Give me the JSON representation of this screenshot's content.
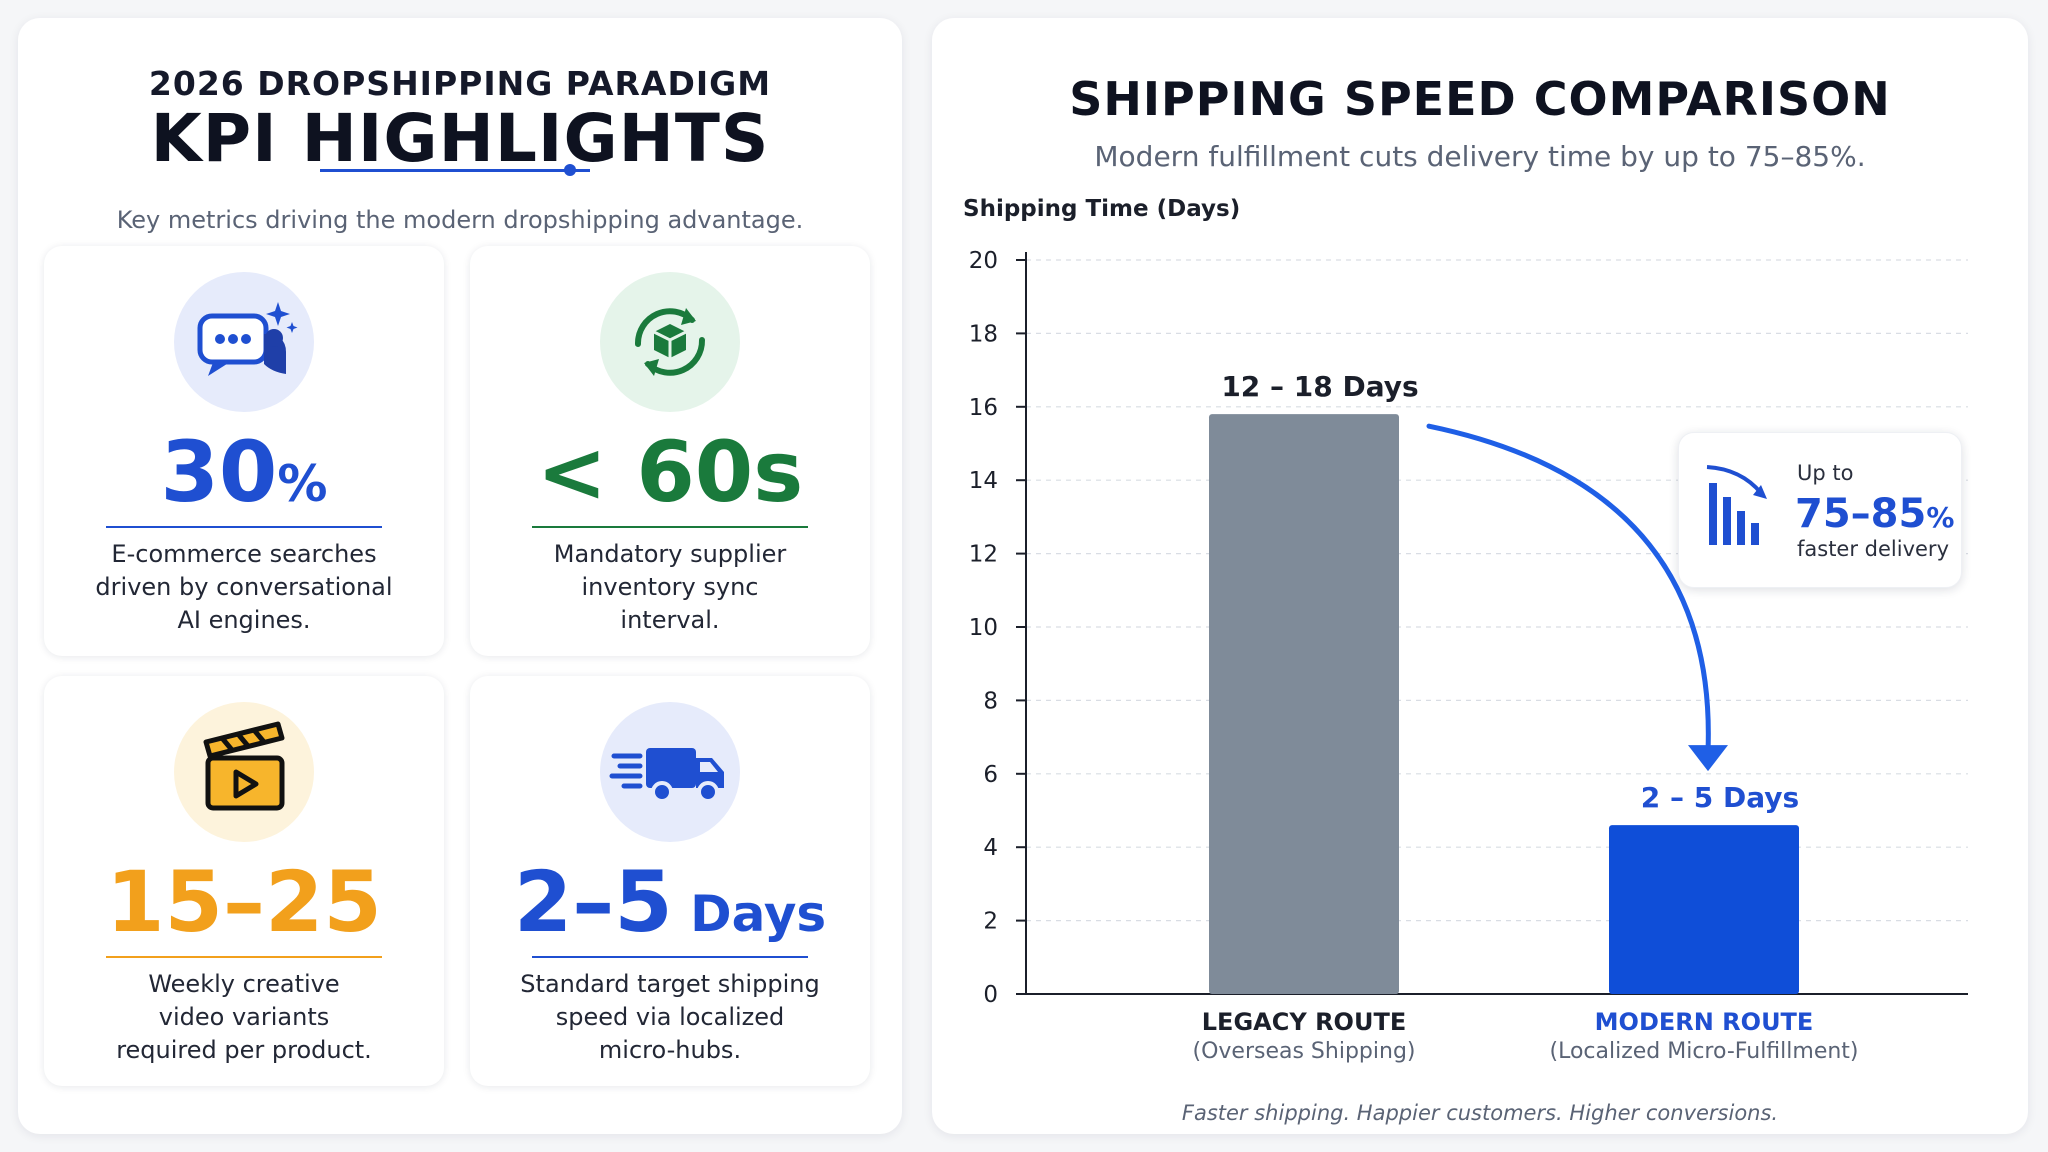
{
  "left": {
    "eyebrow": "2026 DROPSHIPPING PARADIGM",
    "title": "KPI HIGHLIGHTS",
    "subtitle": "Key metrics driving the modern dropshipping advantage.",
    "cards": [
      {
        "value": "30",
        "unit": "%",
        "desc": [
          "E-commerce searches",
          "driven by conversational",
          "AI engines."
        ],
        "icon": "chat-ai-icon",
        "color": "#1f4fd1",
        "bg": "#e6ebfb"
      },
      {
        "value": "< 60s",
        "unit": "",
        "desc": [
          "Mandatory supplier",
          "inventory sync",
          "interval."
        ],
        "icon": "sync-box-icon",
        "color": "#1a7a3c",
        "bg": "#e5f4ea"
      },
      {
        "value": "15–25",
        "unit": "",
        "desc": [
          "Weekly creative",
          "video variants",
          "required per product."
        ],
        "icon": "clapperboard-icon",
        "color": "#f2a01c",
        "bg": "#fdf3dc"
      },
      {
        "value": "2–5",
        "unit": " Days",
        "desc": [
          "Standard target shipping",
          "speed via localized",
          "micro-hubs."
        ],
        "icon": "delivery-truck-icon",
        "color": "#1f4fd1",
        "bg": "#e6ebfb"
      }
    ]
  },
  "right": {
    "title": "SHIPPING SPEED COMPARISON",
    "subtitle": "Modern fulfillment cuts delivery time by up to 75–85%.",
    "footer": "Faster shipping. Happier customers. Higher conversions.",
    "callout": {
      "up_to": "Up to",
      "value": "75–85",
      "pct": "%",
      "label": "faster delivery",
      "icon": "declining-bars-icon"
    }
  },
  "chart_data": {
    "type": "bar",
    "ylabel": "Shipping Time (Days)",
    "ylim": [
      0,
      20
    ],
    "yticks": [
      0,
      2,
      4,
      6,
      8,
      10,
      12,
      14,
      16,
      18,
      20
    ],
    "grid": true,
    "categories": [
      "LEGACY ROUTE",
      "MODERN ROUTE"
    ],
    "category_sublabels": [
      "(Overseas Shipping)",
      "(Localized Micro-Fulfillment)"
    ],
    "values": [
      15.8,
      4.6
    ],
    "data_labels": [
      "12 – 18 Days",
      "2 – 5 Days"
    ],
    "colors": [
      "#7f8b99",
      "#0f4ed8"
    ],
    "label_colors": [
      "#1b1f2a",
      "#1f4fd1"
    ]
  }
}
